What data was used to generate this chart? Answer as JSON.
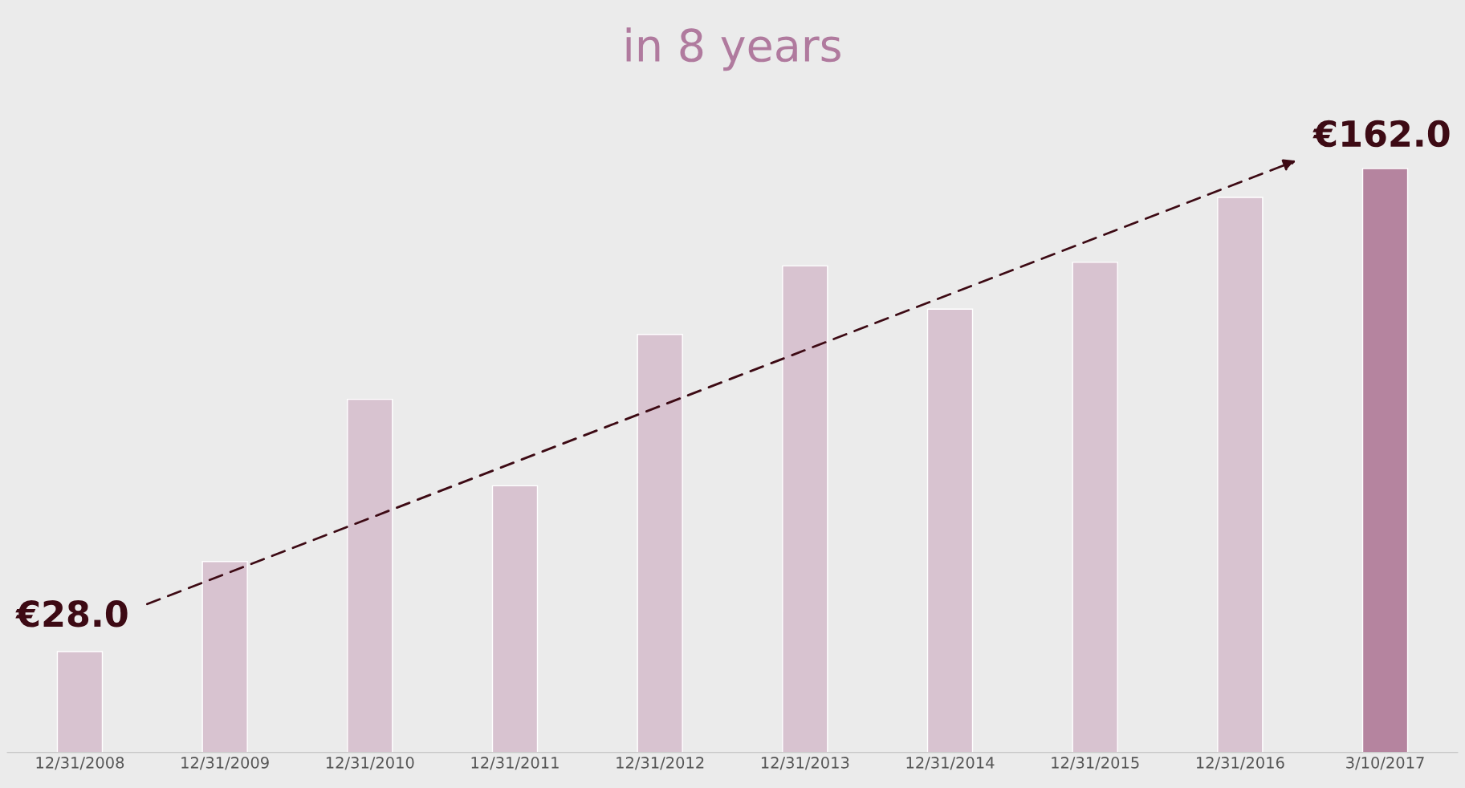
{
  "chart_data": {
    "type": "bar",
    "title": "in 8 years",
    "categories": [
      "12/31/2008",
      "12/31/2009",
      "12/31/2010",
      "12/31/2011",
      "12/31/2012",
      "12/31/2013",
      "12/31/2014",
      "12/31/2015",
      "12/31/2016",
      "3/10/2017"
    ],
    "values": [
      28.0,
      53,
      98,
      74,
      116,
      135,
      123,
      136,
      154,
      162.0
    ],
    "colors": [
      "#d8c3d0",
      "#d8c3d0",
      "#d8c3d0",
      "#d8c3d0",
      "#d8c3d0",
      "#d8c3d0",
      "#d8c3d0",
      "#d8c3d0",
      "#d8c3d0",
      "#b5849f"
    ],
    "value_labels": [
      "€28.0",
      null,
      null,
      null,
      null,
      null,
      null,
      null,
      null,
      "€162.0"
    ]
  }
}
